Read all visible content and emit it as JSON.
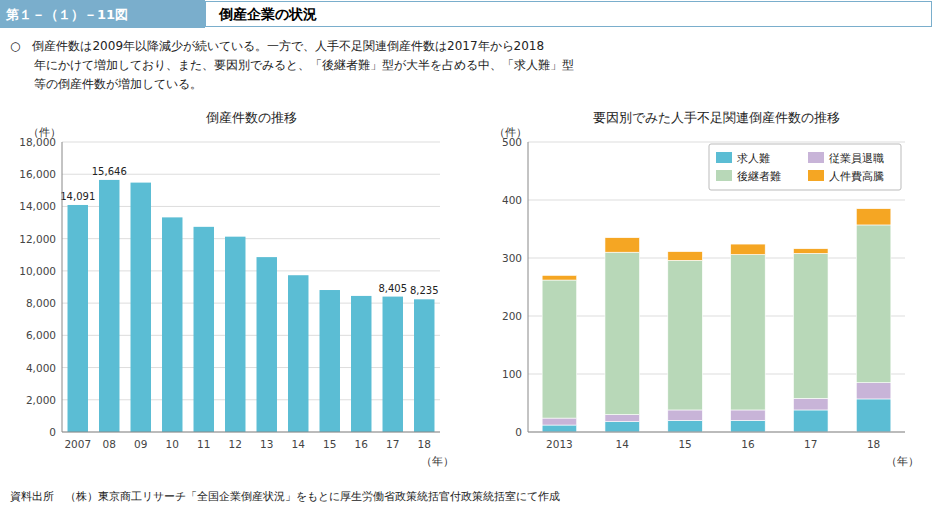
{
  "figure_label": "第１－（１）－11図",
  "figure_title": "倒産企業の状況",
  "banner_color": "#7aaecc",
  "header_lines": [
    "○　倒産件数は2009年以降減少が続いている。一方で、人手不足関連倒産件数は2017年から2018",
    "　　年にかけて増加しており、また、要因別でみると、「後継者難」型が大半を占める中、「求人難」型",
    "　　等の倒産件数が増加している。"
  ],
  "source": "資料出所　（株）東京商工リサーチ「全国企業倒産状況」をもとに厚生労働省政策統括官付政策統括室にて作成",
  "chart_data": [
    {
      "type": "bar",
      "title": "倒産件数の推移",
      "ylabel": "（件）",
      "xlabel": "（年）",
      "categories": [
        "2007",
        "08",
        "09",
        "10",
        "11",
        "12",
        "13",
        "14",
        "15",
        "16",
        "17",
        "18"
      ],
      "values": [
        14091,
        15646,
        15480,
        13321,
        12734,
        12124,
        10855,
        9731,
        8812,
        8446,
        8405,
        8235
      ],
      "value_labels": [
        "14,091",
        "15,646",
        null,
        null,
        null,
        null,
        null,
        null,
        null,
        null,
        "8,405",
        "8,235"
      ],
      "data_labels": true,
      "color": "#5bbdd4",
      "ylim": [
        0,
        18000
      ],
      "yticks": [
        0,
        {
          "value": 2000,
          "label": "2,000"
        },
        {
          "value": 4000,
          "label": "4,000"
        },
        {
          "value": 6000,
          "label": "6,000"
        },
        {
          "value": 8000,
          "label": "8,000"
        },
        {
          "value": 10000,
          "label": "10,000"
        },
        {
          "value": 12000,
          "label": "12,000"
        },
        {
          "value": 14000,
          "label": "14,000"
        },
        {
          "value": 16000,
          "label": "16,000"
        },
        {
          "value": 18000,
          "label": "18,000"
        }
      ],
      "grid": true
    },
    {
      "type": "bar",
      "title": "要因別でみた人手不足関連倒産件数の推移",
      "ylabel": "（件）",
      "xlabel": "（年）",
      "categories": [
        "2013",
        "14",
        "15",
        "16",
        "17",
        "18"
      ],
      "stacked": true,
      "series": [
        {
          "name": "求人難",
          "color": "#5bbdd4",
          "values": [
            12,
            18,
            20,
            20,
            38,
            57
          ]
        },
        {
          "name": "従業員退職",
          "color": "#c8b4d8",
          "values": [
            12,
            12,
            18,
            18,
            20,
            28
          ]
        },
        {
          "name": "後継者難",
          "color": "#b8d8b8",
          "values": [
            238,
            280,
            258,
            268,
            250,
            272
          ]
        },
        {
          "name": "人件費高騰",
          "color": "#f5a623",
          "values": [
            8,
            25,
            15,
            18,
            8,
            28
          ]
        }
      ],
      "ylim": [
        0,
        500
      ],
      "yticks": [
        0,
        100,
        200,
        300,
        400,
        500
      ],
      "grid": true,
      "legend": "upper right"
    }
  ]
}
